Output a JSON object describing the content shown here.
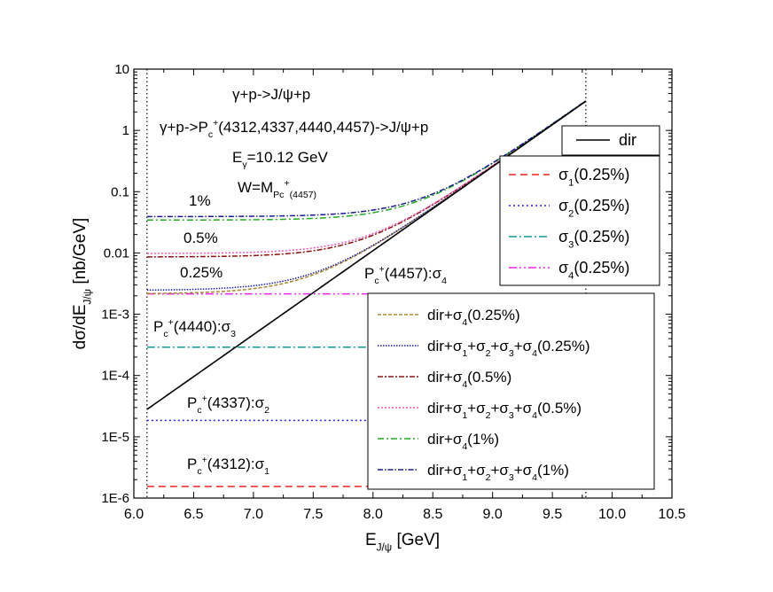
{
  "chart_data": {
    "type": "line",
    "xlabel_main": "E",
    "xlabel_sub": "J/ψ",
    "xlabel_unit": " [GeV]",
    "ylabel_main": "dσ/dE",
    "ylabel_sub": "J/ψ",
    "ylabel_unit": "  [nb/GeV]",
    "xlim": [
      6.0,
      10.5
    ],
    "ylim_log10": [
      -6,
      1
    ],
    "y_scale": "log",
    "x_ticks": [
      "6.0",
      "6.5",
      "7.0",
      "7.5",
      "8.0",
      "8.5",
      "9.0",
      "9.5",
      "10.0",
      "10.5"
    ],
    "y_ticks": [
      "1E-6",
      "1E-5",
      "1E-4",
      "1E-3",
      "0.01",
      "0.1",
      "1",
      "10"
    ],
    "vlines": [
      6.11,
      9.78
    ],
    "header_lines": [
      "γ+p->J/ψ+p",
      "γ+p->P",
      "c",
      "+",
      "(4312,4337,4440,4457)->J/ψ+p",
      "E",
      "γ",
      "=10.12 GeV",
      "W=M",
      "P",
      "c",
      "+",
      "(4457)"
    ],
    "annotations": {
      "pct_1": "1%",
      "pct_05": "0.5%",
      "pct_025": "0.25%",
      "s4_label": "P_c^+(4457):σ_4",
      "s3_label": "P_c^+(4440):σ_3",
      "s2_label": "P_c^+(4337):σ_2",
      "s1_label": "P_c^+(4312):σ_1"
    },
    "colors": {
      "dir": "#000000",
      "s1": "#ee2222",
      "s2": "#2222ee",
      "s3": "#119999",
      "s4": "#ee22ee",
      "dir_s4_025": "#aa8833",
      "all_025": "#1a1aa0",
      "dir_s4_05": "#8b1010",
      "all_05": "#ee55bb",
      "dir_s4_1": "#22aa22",
      "all_1": "#1a1a90"
    },
    "series": [
      {
        "id": "dir",
        "name": "dir",
        "dash": "",
        "points": [
          [
            6.11,
            2.8e-05
          ],
          [
            9.78,
            3.0
          ]
        ]
      },
      {
        "id": "s1",
        "name": "σ_1(0.25%)",
        "dash": "8,5",
        "const": 1.55e-06
      },
      {
        "id": "s2",
        "name": "σ_2(0.25%)",
        "dash": "2,3",
        "const": 1.85e-05
      },
      {
        "id": "s3",
        "name": "σ_3(0.25%)",
        "dash": "9,3,2,3",
        "const": 0.00029
      },
      {
        "id": "s4",
        "name": "σ_4(0.25%)",
        "dash": "9,3,2,3,2,3",
        "const": 0.00215
      },
      {
        "id": "dir_s4_025",
        "name": "dir+σ_4(0.25%)",
        "dash": "4,2",
        "add": 0.00215
      },
      {
        "id": "all_025",
        "name": "dir+σ_1+σ_2+σ_3+σ_4(0.25%)",
        "dash": "1.5,1.5",
        "add": 0.00245
      },
      {
        "id": "dir_s4_05",
        "name": "dir+σ_4(0.5%)",
        "dash": "6,2,2,2",
        "add": 0.0086
      },
      {
        "id": "all_05",
        "name": "dir+σ_1+σ_2+σ_3+σ_4(0.5%)",
        "dash": "2,2",
        "add": 0.0098
      },
      {
        "id": "dir_s4_1",
        "name": "dir+σ_4(1%)",
        "dash": "7,3,2,3",
        "add": 0.0344
      },
      {
        "id": "all_1",
        "name": "dir+σ_1+σ_2+σ_3+σ_4(1%)",
        "dash": "6,2,1.5,2",
        "add": 0.0392
      }
    ],
    "legend_top": [
      "dir"
    ],
    "legend_right": [
      "s1",
      "s2",
      "s3",
      "s4"
    ],
    "legend_bottom": [
      "dir_s4_025",
      "all_025",
      "dir_s4_05",
      "all_05",
      "dir_s4_1",
      "all_1"
    ]
  }
}
